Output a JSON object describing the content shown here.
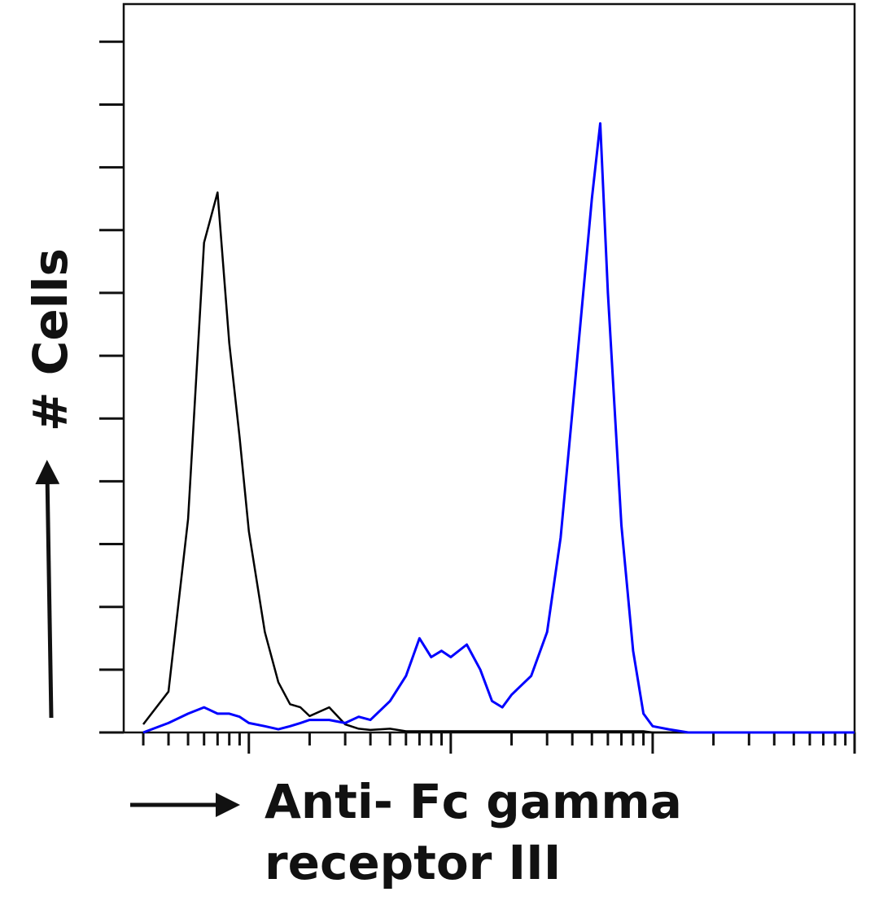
{
  "chart_data": {
    "type": "line",
    "ylabel": "# Cells",
    "xlabel": [
      "Anti- Fc gamma",
      "receptor III"
    ],
    "xscale": "log",
    "xlim": [
      2.4,
      10000
    ],
    "xticks": [
      3,
      4,
      5,
      6,
      7,
      8,
      9,
      10,
      20,
      30,
      40,
      50,
      60,
      70,
      80,
      90,
      100,
      200,
      300,
      400,
      500,
      600,
      700,
      800,
      900,
      1000,
      2000,
      3000,
      4000,
      5000,
      6000,
      7000,
      8000,
      9000,
      10000
    ],
    "ylim": [
      0,
      11.6
    ],
    "yticks": [
      0,
      1,
      2,
      3,
      4,
      5,
      6,
      7,
      8,
      9,
      10,
      11
    ],
    "x": [
      3,
      4,
      5,
      6,
      7,
      8,
      9,
      10,
      12,
      14,
      16,
      18,
      20,
      25,
      30,
      35,
      40,
      50,
      60,
      70,
      80,
      90,
      100,
      120,
      140,
      160,
      180,
      200,
      250,
      300,
      350,
      400,
      500,
      550,
      600,
      700,
      800,
      900,
      1000,
      1200,
      1500,
      2000,
      3000,
      5000,
      10000
    ],
    "series": [
      {
        "color": "#000000",
        "values": [
          0.13,
          0.65,
          3.4,
          7.8,
          8.6,
          6.2,
          4.7,
          3.2,
          1.6,
          0.8,
          0.45,
          0.4,
          0.26,
          0.4,
          0.13,
          0.06,
          0.04,
          0.06,
          0.02,
          0.02,
          0.02,
          0.02,
          0.02,
          0.02,
          0.02,
          0.02,
          0.02,
          0.02,
          0.02,
          0.02,
          0.02,
          0.02,
          0.02,
          0.02,
          0.02,
          0.02,
          0.02,
          0.02,
          0,
          0,
          0,
          0,
          0,
          0,
          0
        ]
      },
      {
        "color": "#0000ff",
        "values": [
          0,
          0.15,
          0.3,
          0.4,
          0.3,
          0.3,
          0.25,
          0.15,
          0.1,
          0.05,
          0.1,
          0.15,
          0.2,
          0.2,
          0.15,
          0.25,
          0.2,
          0.5,
          0.9,
          1.5,
          1.2,
          1.3,
          1.2,
          1.4,
          1.0,
          0.5,
          0.4,
          0.6,
          0.9,
          1.6,
          3.1,
          5.1,
          8.5,
          9.7,
          7.0,
          3.3,
          1.3,
          0.3,
          0.1,
          0.05,
          0,
          0,
          0,
          0,
          0
        ]
      }
    ]
  }
}
